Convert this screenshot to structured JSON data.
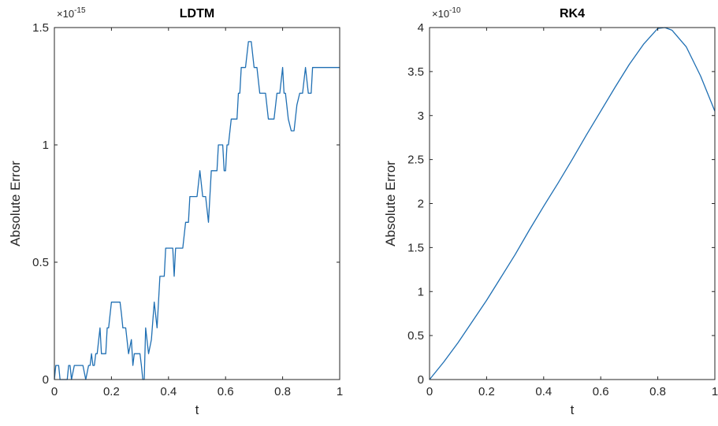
{
  "colors": {
    "series": "#1f6fb3",
    "axis": "#262626",
    "background": "#ffffff"
  },
  "chart_data": [
    {
      "type": "line",
      "title": "LDTM",
      "xlabel": "t",
      "ylabel": "Absolute Error",
      "y_exponent": "-15",
      "xlim": [
        0,
        1
      ],
      "ylim": [
        0,
        1.5
      ],
      "xticks": [
        0,
        0.2,
        0.4,
        0.6,
        0.8,
        1
      ],
      "xtick_labels": [
        "0",
        "0.2",
        "0.4",
        "0.6",
        "0.8",
        "1"
      ],
      "yticks": [
        0,
        0.5,
        1,
        1.5
      ],
      "ytick_labels": [
        "0",
        "0.5",
        "1",
        "1.5"
      ],
      "grid": false,
      "series": [
        {
          "x": [
            0,
            0.005,
            0.015,
            0.02,
            0.025,
            0.035,
            0.045,
            0.05,
            0.055,
            0.06,
            0.07,
            0.08,
            0.09,
            0.1,
            0.11,
            0.12,
            0.125,
            0.13,
            0.135,
            0.14,
            0.145,
            0.15,
            0.16,
            0.165,
            0.17,
            0.175,
            0.18,
            0.185,
            0.19,
            0.2,
            0.21,
            0.215,
            0.22,
            0.23,
            0.235,
            0.24,
            0.25,
            0.26,
            0.27,
            0.275,
            0.28,
            0.285,
            0.29,
            0.3,
            0.305,
            0.31,
            0.315,
            0.32,
            0.33,
            0.34,
            0.35,
            0.36,
            0.365,
            0.37,
            0.375,
            0.38,
            0.385,
            0.39,
            0.395,
            0.4,
            0.405,
            0.41,
            0.415,
            0.42,
            0.425,
            0.43,
            0.44,
            0.45,
            0.46,
            0.465,
            0.47,
            0.475,
            0.48,
            0.49,
            0.5,
            0.51,
            0.52,
            0.53,
            0.54,
            0.55,
            0.56,
            0.565,
            0.57,
            0.575,
            0.58,
            0.59,
            0.595,
            0.6,
            0.605,
            0.61,
            0.62,
            0.63,
            0.64,
            0.645,
            0.65,
            0.655,
            0.66,
            0.67,
            0.68,
            0.69,
            0.7,
            0.71,
            0.72,
            0.73,
            0.74,
            0.75,
            0.76,
            0.77,
            0.78,
            0.79,
            0.8,
            0.805,
            0.81,
            0.82,
            0.83,
            0.84,
            0.85,
            0.86,
            0.87,
            0.88,
            0.89,
            0.9,
            0.905,
            0.91,
            0.915,
            0.92,
            0.925,
            0.93,
            0.94,
            0.95,
            0.96,
            0.97,
            0.98,
            0.985,
            0.99,
            1
          ],
          "y": [
            0,
            0.06,
            0.06,
            0,
            0,
            0,
            0,
            0.06,
            0.06,
            0,
            0.06,
            0.06,
            0.06,
            0.06,
            0,
            0.06,
            0.06,
            0.11,
            0.06,
            0.06,
            0.11,
            0.11,
            0.22,
            0.11,
            0.11,
            0.11,
            0.11,
            0.22,
            0.22,
            0.33,
            0.33,
            0.33,
            0.33,
            0.33,
            0.28,
            0.22,
            0.22,
            0.11,
            0.17,
            0.06,
            0.11,
            0.11,
            0.11,
            0.11,
            0.06,
            0,
            0,
            0.22,
            0.11,
            0.17,
            0.33,
            0.22,
            0.33,
            0.44,
            0.44,
            0.44,
            0.44,
            0.56,
            0.56,
            0.56,
            0.56,
            0.56,
            0.56,
            0.44,
            0.56,
            0.56,
            0.56,
            0.56,
            0.67,
            0.67,
            0.67,
            0.78,
            0.78,
            0.78,
            0.78,
            0.89,
            0.78,
            0.78,
            0.67,
            0.89,
            0.89,
            0.89,
            0.89,
            1.0,
            1.0,
            1.0,
            0.89,
            0.89,
            1.0,
            1.0,
            1.11,
            1.11,
            1.11,
            1.22,
            1.22,
            1.33,
            1.33,
            1.33,
            1.44,
            1.44,
            1.33,
            1.33,
            1.22,
            1.22,
            1.22,
            1.11,
            1.11,
            1.11,
            1.22,
            1.22,
            1.33,
            1.22,
            1.22,
            1.11,
            1.06,
            1.06,
            1.17,
            1.22,
            1.22,
            1.33,
            1.22,
            1.22,
            1.33,
            1.33,
            1.33,
            1.33,
            1.33,
            1.33,
            1.33,
            1.33,
            1.33,
            1.33,
            1.33,
            1.33,
            1.33,
            1.33
          ],
          "_note_ignore": ""
        }
      ]
    },
    {
      "type": "line",
      "title": "RK4",
      "xlabel": "t",
      "ylabel": "Absolute Error",
      "y_exponent": "-10",
      "xlim": [
        0,
        1
      ],
      "ylim": [
        0,
        4
      ],
      "xticks": [
        0,
        0.2,
        0.4,
        0.6,
        0.8,
        1
      ],
      "xtick_labels": [
        "0",
        "0.2",
        "0.4",
        "0.6",
        "0.8",
        "1"
      ],
      "yticks": [
        0,
        0.5,
        1,
        1.5,
        2,
        2.5,
        3,
        3.5,
        4
      ],
      "ytick_labels": [
        "0",
        "0.5",
        "1",
        "1.5",
        "2",
        "2.5",
        "3",
        "3.5",
        "4"
      ],
      "grid": false,
      "series": [
        {
          "x": [
            0,
            0.05,
            0.1,
            0.15,
            0.2,
            0.25,
            0.3,
            0.35,
            0.4,
            0.45,
            0.5,
            0.55,
            0.6,
            0.65,
            0.7,
            0.75,
            0.8,
            0.825,
            0.85,
            0.9,
            0.95,
            1
          ],
          "y": [
            0,
            0.2,
            0.42,
            0.66,
            0.9,
            1.16,
            1.42,
            1.7,
            1.97,
            2.23,
            2.5,
            2.78,
            3.05,
            3.32,
            3.58,
            3.81,
            3.99,
            4.0,
            3.97,
            3.78,
            3.45,
            3.05
          ]
        }
      ]
    }
  ]
}
